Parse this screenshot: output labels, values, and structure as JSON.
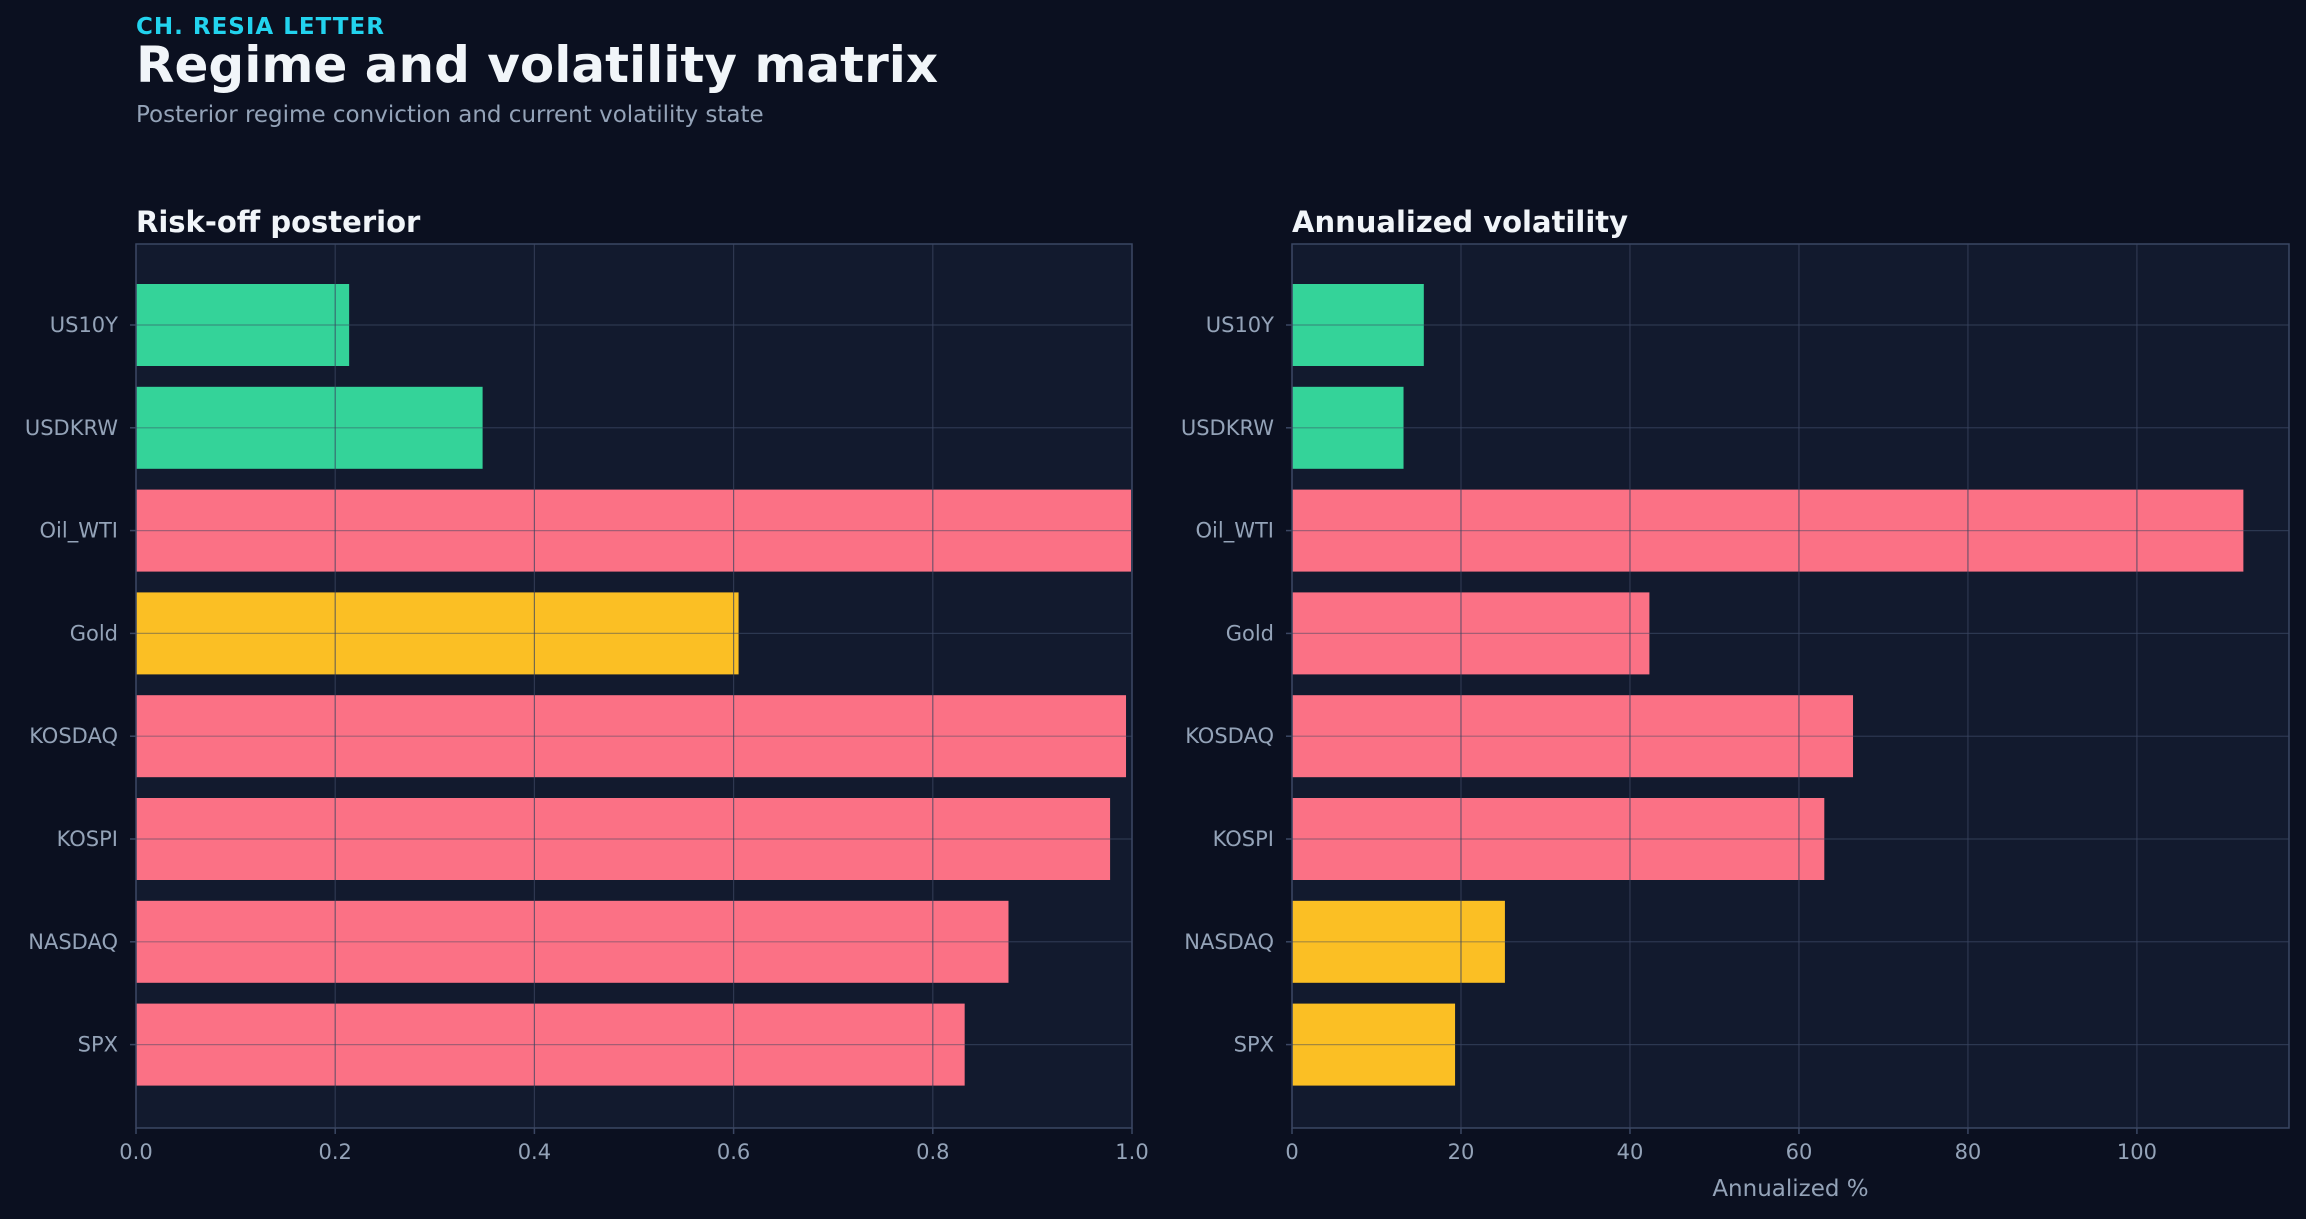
{
  "header": {
    "kicker": "CH. RESIA LETTER",
    "title": "Regime and volatility matrix",
    "subtitle": "Posterior regime conviction and current volatility state"
  },
  "colors": {
    "background": "#0b1020",
    "panel": "#121a2e",
    "grid": "#25304a",
    "risk_off": "#fb7185",
    "risk_on": "#34d399",
    "neutral": "#fbbf24"
  },
  "chart_data": [
    {
      "type": "bar",
      "orientation": "horizontal",
      "title": "Risk-off posterior",
      "xlabel": "",
      "ylabel": "",
      "xlim": [
        0,
        1.0
      ],
      "xticks": [
        "0.0",
        "0.2",
        "0.4",
        "0.6",
        "0.8",
        "1.0"
      ],
      "xtick_values": [
        0,
        0.2,
        0.4,
        0.6,
        0.8,
        1.0
      ],
      "grid": true,
      "categories": [
        "US10Y",
        "USDKRW",
        "Oil_WTI",
        "Gold",
        "KOSDAQ",
        "KOSPI",
        "NASDAQ",
        "SPX"
      ],
      "values": [
        0.214,
        0.348,
        0.999,
        0.605,
        0.994,
        0.978,
        0.876,
        0.832
      ],
      "bar_colors": [
        "#34d399",
        "#34d399",
        "#fb7185",
        "#fbbf24",
        "#fb7185",
        "#fb7185",
        "#fb7185",
        "#fb7185"
      ]
    },
    {
      "type": "bar",
      "orientation": "horizontal",
      "title": "Annualized volatility",
      "xlabel": "Annualized %",
      "ylabel": "",
      "xlim": [
        0,
        118
      ],
      "xticks": [
        "0",
        "20",
        "40",
        "60",
        "80",
        "100"
      ],
      "xtick_values": [
        0,
        20,
        40,
        60,
        80,
        100
      ],
      "grid": true,
      "categories": [
        "US10Y",
        "USDKRW",
        "Oil_WTI",
        "Gold",
        "KOSDAQ",
        "KOSPI",
        "NASDAQ",
        "SPX"
      ],
      "values": [
        15.6,
        13.2,
        112.6,
        42.3,
        66.4,
        63.0,
        25.2,
        19.3
      ],
      "bar_colors": [
        "#34d399",
        "#34d399",
        "#fb7185",
        "#fb7185",
        "#fb7185",
        "#fb7185",
        "#fbbf24",
        "#fbbf24"
      ]
    }
  ]
}
